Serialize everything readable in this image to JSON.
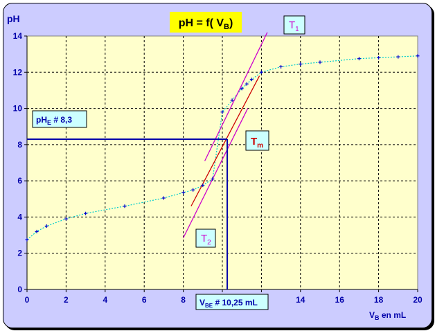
{
  "chart_data": {
    "type": "scatter",
    "title_main": "pH = f( V",
    "title_sub": "B",
    "title_end": ")",
    "ylabel": "pH",
    "xlabel_v": "V",
    "xlabel_sub": "B",
    "xlabel_rest": " en mL",
    "xlim": [
      0,
      20
    ],
    "ylim": [
      0,
      14
    ],
    "xticks": [
      0,
      2,
      4,
      6,
      8,
      10,
      12,
      14,
      16,
      18,
      20
    ],
    "yticks": [
      0,
      2,
      4,
      6,
      8,
      10,
      12,
      14
    ],
    "grid": true,
    "series": [
      {
        "x": [
          0,
          0.5,
          1,
          2,
          3,
          5,
          7,
          8,
          8.5,
          9,
          9.5,
          10,
          10.5,
          11,
          11.25,
          11.5,
          12,
          13,
          14,
          15,
          17,
          18,
          19,
          20
        ],
        "y": [
          2.75,
          3.2,
          3.5,
          3.9,
          4.2,
          4.6,
          5.05,
          5.35,
          5.5,
          5.75,
          6.1,
          9.8,
          10.45,
          11.1,
          11.35,
          11.6,
          12.0,
          12.3,
          12.45,
          12.55,
          12.75,
          12.8,
          12.85,
          12.9
        ],
        "fit": true
      }
    ],
    "tangents": [
      {
        "label": "T",
        "sub": "1",
        "from": [
          9.1,
          7.1
        ],
        "to": [
          12.3,
          14.2
        ]
      },
      {
        "label": "T",
        "sub": "2",
        "from": [
          8.0,
          2.85
        ],
        "to": [
          11.3,
          10.0
        ]
      },
      {
        "label": "T",
        "sub": "m",
        "from": [
          8.4,
          4.6
        ],
        "to": [
          11.9,
          11.8
        ]
      }
    ],
    "equivalence": {
      "ph_label": "pH",
      "ph_sub": "E",
      "ph_text": " #  8,3",
      "ph": 8.3,
      "v_label": "V",
      "v_sub": "BE",
      "v_text": " # 10,25 mL",
      "v": 10.25
    },
    "colors": {
      "frame": "#ccccff",
      "plot_area": "#ffffcc",
      "grid": "#000000",
      "points": "#0000cc",
      "fit": "#00cccc",
      "tangent_outer": "#cc00cc",
      "tangent_mid": "#cc0000",
      "guide": "#0000aa",
      "title_bg": "#ffff00",
      "label_box_bg": "#ccffff"
    }
  }
}
